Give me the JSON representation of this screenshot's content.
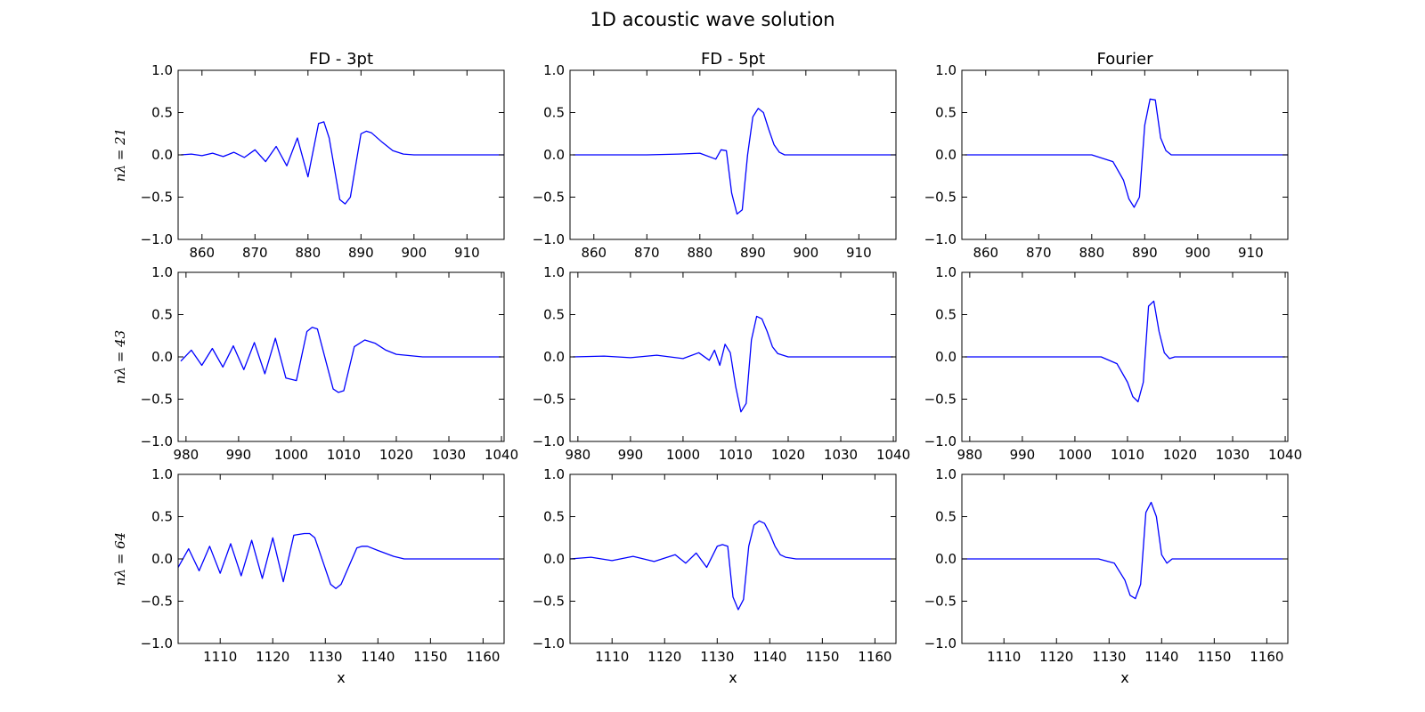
{
  "title": "1D acoustic wave solution",
  "chart_data": {
    "type": "line",
    "title": "1D acoustic wave solution",
    "column_titles": [
      "FD - 3pt",
      "FD - 5pt",
      "Fourier"
    ],
    "row_labels": [
      "nλ = 21",
      "nλ = 43",
      "nλ = 64"
    ],
    "xlabel": "x",
    "line_color": "#0000ff",
    "ylim": [
      -1.0,
      1.0
    ],
    "yticks": [
      -1.0,
      -0.5,
      0.0,
      0.5,
      1.0
    ],
    "ytick_labels": [
      "−1.0",
      "−0.5",
      "0.0",
      "0.5",
      "1.0"
    ],
    "rows": [
      {
        "xlim": [
          855.5,
          917
        ],
        "xticks": [
          860,
          870,
          880,
          890,
          900,
          910
        ],
        "xtick_labels": [
          "860",
          "870",
          "880",
          "890",
          "900",
          "910"
        ]
      },
      {
        "xlim": [
          978.5,
          1040.5
        ],
        "xticks": [
          980,
          990,
          1000,
          1010,
          1020,
          1030,
          1040
        ],
        "xtick_labels": [
          "980",
          "990",
          "1000",
          "1010",
          "1020",
          "1030",
          "1040"
        ]
      },
      {
        "xlim": [
          1102,
          1164
        ],
        "xticks": [
          1110,
          1120,
          1130,
          1140,
          1150,
          1160
        ],
        "xtick_labels": [
          "1110",
          "1120",
          "1130",
          "1140",
          "1150",
          "1160"
        ]
      }
    ],
    "panels": [
      [
        {
          "x": [
            856,
            858,
            860,
            862,
            864,
            866,
            868,
            870,
            872,
            874,
            876,
            878,
            880,
            882,
            883,
            884,
            886,
            887,
            888,
            890,
            891,
            892,
            894,
            896,
            898,
            900,
            910,
            917
          ],
          "y": [
            0,
            0.01,
            -0.01,
            0.02,
            -0.02,
            0.03,
            -0.03,
            0.06,
            -0.08,
            0.1,
            -0.13,
            0.2,
            -0.26,
            0.37,
            0.39,
            0.2,
            -0.53,
            -0.58,
            -0.5,
            0.25,
            0.28,
            0.26,
            0.15,
            0.05,
            0.01,
            0,
            0,
            0
          ]
        },
        {
          "x": [
            856,
            870,
            876,
            880,
            883,
            884,
            885,
            886,
            887,
            888,
            889,
            890,
            891,
            892,
            893,
            894,
            895,
            896,
            900,
            917
          ],
          "y": [
            0,
            0,
            0.01,
            0.02,
            -0.05,
            0.06,
            0.05,
            -0.45,
            -0.7,
            -0.65,
            0,
            0.45,
            0.55,
            0.5,
            0.3,
            0.12,
            0.03,
            0,
            0,
            0
          ]
        },
        {
          "x": [
            856,
            880,
            884,
            886,
            887,
            888,
            889,
            890,
            891,
            892,
            893,
            894,
            895,
            917
          ],
          "y": [
            0,
            0,
            -0.08,
            -0.3,
            -0.52,
            -0.62,
            -0.5,
            0.35,
            0.66,
            0.65,
            0.2,
            0.05,
            0,
            0
          ]
        }
      ],
      [
        {
          "x": [
            979,
            981,
            983,
            985,
            987,
            989,
            991,
            993,
            995,
            997,
            999,
            1001,
            1003,
            1004,
            1005,
            1008,
            1009,
            1010,
            1012,
            1014,
            1016,
            1018,
            1020,
            1025,
            1040
          ],
          "y": [
            -0.05,
            0.08,
            -0.1,
            0.1,
            -0.12,
            0.13,
            -0.15,
            0.17,
            -0.2,
            0.22,
            -0.25,
            -0.28,
            0.3,
            0.35,
            0.33,
            -0.38,
            -0.42,
            -0.4,
            0.12,
            0.2,
            0.16,
            0.08,
            0.03,
            0,
            0
          ]
        },
        {
          "x": [
            979,
            985,
            990,
            995,
            1000,
            1003,
            1005,
            1006,
            1007,
            1008,
            1009,
            1010,
            1011,
            1012,
            1013,
            1014,
            1015,
            1016,
            1017,
            1018,
            1020,
            1040
          ],
          "y": [
            0,
            0.01,
            -0.01,
            0.02,
            -0.02,
            0.05,
            -0.04,
            0.08,
            -0.1,
            0.15,
            0.05,
            -0.35,
            -0.65,
            -0.55,
            0.2,
            0.48,
            0.45,
            0.3,
            0.12,
            0.04,
            0,
            0
          ]
        },
        {
          "x": [
            979,
            1005,
            1008,
            1010,
            1011,
            1012,
            1013,
            1014,
            1015,
            1016,
            1017,
            1018,
            1019,
            1040
          ],
          "y": [
            0,
            0,
            -0.08,
            -0.3,
            -0.47,
            -0.53,
            -0.3,
            0.6,
            0.66,
            0.3,
            0.05,
            -0.02,
            0,
            0
          ]
        }
      ],
      [
        {
          "x": [
            1102,
            1104,
            1106,
            1108,
            1110,
            1112,
            1114,
            1116,
            1118,
            1120,
            1122,
            1124,
            1126,
            1127,
            1128,
            1131,
            1132,
            1133,
            1136,
            1137,
            1138,
            1140,
            1143,
            1145,
            1150,
            1163
          ],
          "y": [
            -0.1,
            0.12,
            -0.14,
            0.15,
            -0.17,
            0.18,
            -0.2,
            0.22,
            -0.23,
            0.25,
            -0.27,
            0.28,
            0.3,
            0.3,
            0.25,
            -0.3,
            -0.35,
            -0.3,
            0.13,
            0.15,
            0.15,
            0.1,
            0.03,
            0,
            0,
            0
          ]
        },
        {
          "x": [
            1102,
            1106,
            1110,
            1114,
            1118,
            1122,
            1124,
            1126,
            1128,
            1130,
            1131,
            1132,
            1133,
            1134,
            1135,
            1136,
            1137,
            1138,
            1139,
            1140,
            1141,
            1142,
            1143,
            1145,
            1163
          ],
          "y": [
            0,
            0.02,
            -0.02,
            0.03,
            -0.03,
            0.05,
            -0.05,
            0.07,
            -0.1,
            0.15,
            0.17,
            0.15,
            -0.45,
            -0.6,
            -0.48,
            0.15,
            0.4,
            0.45,
            0.42,
            0.3,
            0.15,
            0.05,
            0.02,
            0,
            0
          ]
        },
        {
          "x": [
            1102,
            1128,
            1131,
            1133,
            1134,
            1135,
            1136,
            1137,
            1138,
            1139,
            1140,
            1141,
            1142,
            1143,
            1163
          ],
          "y": [
            0,
            0,
            -0.05,
            -0.25,
            -0.43,
            -0.47,
            -0.3,
            0.55,
            0.67,
            0.5,
            0.05,
            -0.05,
            0,
            0,
            0
          ]
        }
      ]
    ]
  }
}
